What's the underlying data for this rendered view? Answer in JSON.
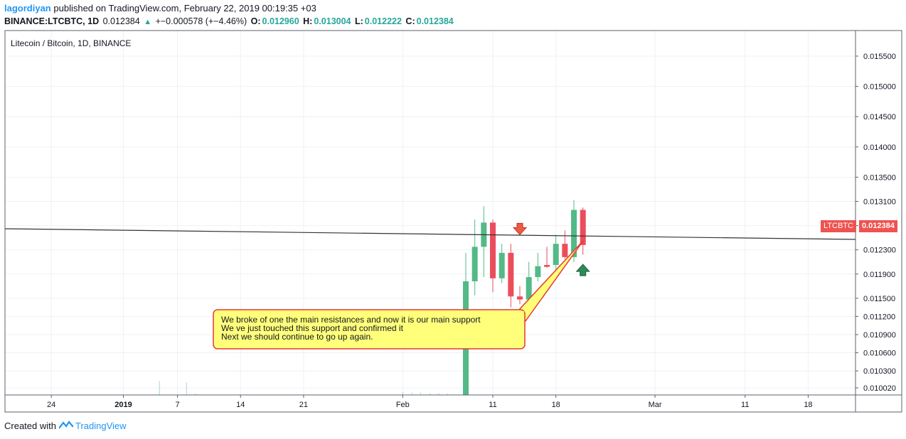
{
  "header": {
    "author": "lagordiyan",
    "published_text": "published on TradingView.com, February 22, 2019 00:19:35 +03",
    "symbol": "BINANCE:LTCBTC, 1D",
    "last": "0.012384",
    "change_arrow": "▲",
    "change": "+−0.000578 (+−4.46%)",
    "o_label": "O:",
    "o_value": "0.012960",
    "h_label": "H:",
    "h_value": "0.013004",
    "l_label": "L:",
    "l_value": "0.012222",
    "c_label": "C:",
    "c_value": "0.012384"
  },
  "footer": {
    "created_with": "Created with",
    "brand": "TradingView"
  },
  "price_tag": {
    "symbol": "LTCBTC",
    "value": "0.012384"
  },
  "annotation": {
    "lines": [
      "We broke of one the main resistances and now it is our main support",
      "We ve just touched this support and confirmed it",
      "Next we should continue to go up again."
    ],
    "fill_color": "#ffff7a",
    "border_color": "#e53935"
  },
  "colors": {
    "up": "#26a69a",
    "down": "#ef5350",
    "up_body": "#53b987",
    "down_body": "#eb4d5c",
    "grid": "#eef1f5",
    "text": "#131722"
  },
  "chart_data": {
    "type": "candlestick",
    "title": "Litecoin / Bitcoin, 1D, BINANCE",
    "ylim": [
      0.01,
      0.0158
    ],
    "y_ticks": [
      "0.015500",
      "0.015000",
      "0.014500",
      "0.014000",
      "0.013500",
      "0.013100",
      "0.012700",
      "0.012300",
      "0.011900",
      "0.011500",
      "0.011200",
      "0.010900",
      "0.010600",
      "0.010300",
      "0.010020"
    ],
    "x_ticks": [
      {
        "label": "24",
        "day": 54
      },
      {
        "label": "2019",
        "day": 62,
        "bold": true
      },
      {
        "label": "7",
        "day": 68
      },
      {
        "label": "14",
        "day": 75
      },
      {
        "label": "21",
        "day": 82
      },
      {
        "label": "Feb",
        "day": 93
      },
      {
        "label": "11",
        "day": 103
      },
      {
        "label": "18",
        "day": 110
      },
      {
        "label": "Mar",
        "day": 121
      },
      {
        "label": "11",
        "day": 131
      },
      {
        "label": "18",
        "day": 138
      }
    ],
    "candles": [
      {
        "day": 100,
        "o": 0.0099,
        "h": 0.01225,
        "l": 0.0098,
        "c": 0.01178
      },
      {
        "day": 101,
        "o": 0.01178,
        "h": 0.0128,
        "l": 0.01155,
        "c": 0.01235
      },
      {
        "day": 102,
        "o": 0.01235,
        "h": 0.01302,
        "l": 0.01185,
        "c": 0.01275
      },
      {
        "day": 103,
        "o": 0.01275,
        "h": 0.0128,
        "l": 0.0116,
        "c": 0.01183
      },
      {
        "day": 104,
        "o": 0.01183,
        "h": 0.0124,
        "l": 0.01175,
        "c": 0.01225
      },
      {
        "day": 105,
        "o": 0.01225,
        "h": 0.0124,
        "l": 0.01135,
        "c": 0.01153
      },
      {
        "day": 106,
        "o": 0.01153,
        "h": 0.0117,
        "l": 0.0114,
        "c": 0.01148
      },
      {
        "day": 107,
        "o": 0.01148,
        "h": 0.0121,
        "l": 0.01145,
        "c": 0.01185
      },
      {
        "day": 108,
        "o": 0.01185,
        "h": 0.01225,
        "l": 0.01178,
        "c": 0.01203
      },
      {
        "day": 109,
        "o": 0.01205,
        "h": 0.01235,
        "l": 0.012,
        "c": 0.01202
      },
      {
        "day": 110,
        "o": 0.01205,
        "h": 0.01255,
        "l": 0.01195,
        "c": 0.0124
      },
      {
        "day": 111,
        "o": 0.0124,
        "h": 0.01262,
        "l": 0.01215,
        "c": 0.01218
      },
      {
        "day": 112,
        "o": 0.01218,
        "h": 0.01312,
        "l": 0.0121,
        "c": 0.01296
      },
      {
        "day": 113,
        "o": 0.01296,
        "h": 0.013,
        "l": 0.01222,
        "c": 0.01238
      }
    ],
    "volume": [
      {
        "day": 66,
        "v": 0.9
      },
      {
        "day": 69,
        "v": 0.8
      },
      {
        "day": 70,
        "v": 0.1
      },
      {
        "day": 93,
        "v": 0.2
      },
      {
        "day": 94,
        "v": 0.15
      },
      {
        "day": 95,
        "v": 0.15
      },
      {
        "day": 96,
        "v": 0.1
      },
      {
        "day": 97,
        "v": 0.12
      },
      {
        "day": 98,
        "v": 0.1
      }
    ],
    "trendline": [
      {
        "day": 41,
        "price": 0.01237
      },
      {
        "day": 140,
        "price": 0.012195
      }
    ],
    "markers": [
      {
        "type": "down-arrow",
        "day": 106,
        "price": 0.01262
      },
      {
        "type": "up-arrow",
        "day": 113,
        "price": 0.01199
      }
    ],
    "grid": true
  }
}
